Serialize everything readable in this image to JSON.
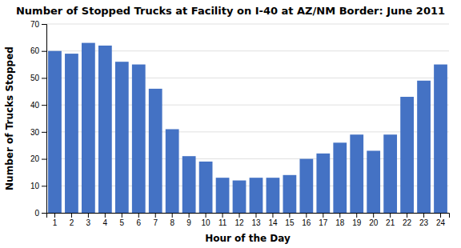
{
  "chart_data": {
    "type": "bar",
    "title": "Number of Stopped Trucks at Facility on I-40 at AZ/NM Border: June 2011",
    "xlabel": "Hour of the Day",
    "ylabel": "Number of Trucks Stopped",
    "categories": [
      "1",
      "2",
      "3",
      "4",
      "5",
      "6",
      "7",
      "8",
      "9",
      "10",
      "11",
      "12",
      "13",
      "14",
      "15",
      "16",
      "17",
      "18",
      "19",
      "20",
      "21",
      "22",
      "23",
      "24"
    ],
    "values": [
      60,
      59,
      63,
      62,
      56,
      55,
      46,
      31,
      21,
      19,
      13,
      12,
      13,
      13,
      14,
      20,
      22,
      26,
      29,
      23,
      29,
      43,
      49,
      55
    ],
    "color": "#4472C4",
    "ylim": [
      0,
      70
    ],
    "yticks": [
      0,
      10,
      20,
      30,
      40,
      50,
      60,
      70
    ],
    "grid": true
  }
}
